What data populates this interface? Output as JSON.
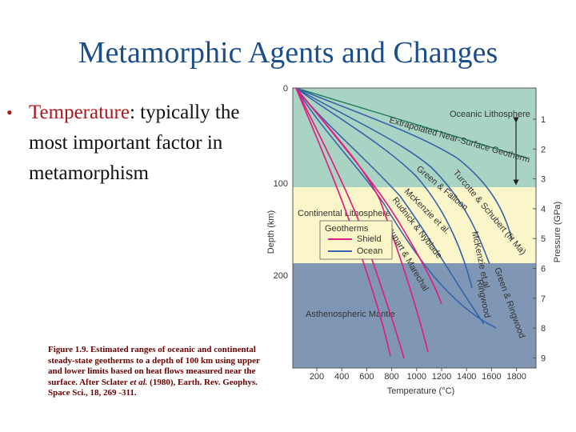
{
  "slide": {
    "title": "Metamorphic Agents and Changes",
    "bullet_term": "Temperature",
    "bullet_rest": ": typically the most important factor in metamorphism",
    "caption_lead": "Figure 1.9.",
    "caption_body": " Estimated ranges of oceanic and continental steady-state geotherms to a depth of 100 km using upper and lower limits based on heat flows measured near the surface. After Sclater",
    "caption_etal": " et al.",
    "caption_tail": " (1980), Earth. Rev. Geophys. Space Sci., 18, 269 -311."
  },
  "figure": {
    "zones": {
      "oceanic": "Oceanic    Lithosphere",
      "continental": "Continental Lithosphere",
      "mantle": "Asthenospheric Mantle"
    },
    "colors": {
      "oceanic": "#a9d4c4",
      "continental": "#fbf6c9",
      "mantle": "#7f97b4",
      "shield": "#e02080",
      "ocean": "#3565a8"
    },
    "legend": {
      "title": "Geotherms",
      "shield": "Shield",
      "ocean": "Ocean"
    },
    "curve_labels": {
      "extrapolated": "Extrapolated Near-Surface Geotherm",
      "turcotte": "Turcotte & Schubert (fit Ma)",
      "green_falloon": "Green & Falloon",
      "mckenzie1": "McKenzie et al.",
      "rudnick": "Rudnick & Nyblade",
      "jaupart": "Jaupart & Marechal",
      "mckenzie2": "McKenzie et al.",
      "ringwood": "Ringwood",
      "green_ringwood": "Green & Ringwood"
    },
    "x_axis": {
      "title": "Temperature (°C)",
      "ticks": [
        "200",
        "400",
        "600",
        "800",
        "1000",
        "1200",
        "1400",
        "1600",
        "1800"
      ]
    },
    "y_axis": {
      "title": "Depth (km)",
      "ticks": [
        "0",
        "100",
        "200"
      ]
    },
    "y2_axis": {
      "title": "Pressure (GPa)",
      "ticks": [
        "1",
        "2",
        "3",
        "4",
        "5",
        "6",
        "7",
        "8",
        "9"
      ]
    }
  }
}
